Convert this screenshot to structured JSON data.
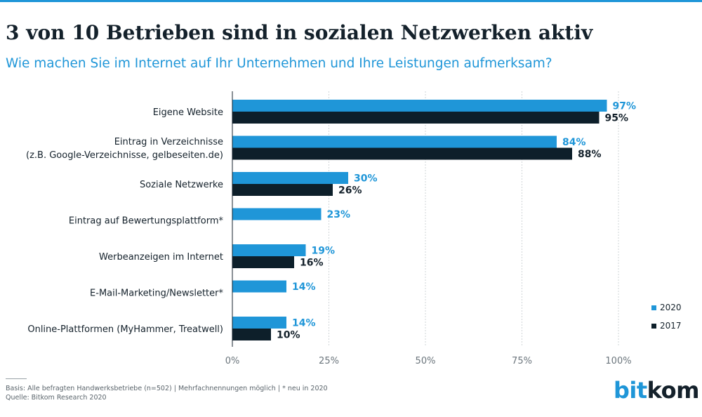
{
  "title": "3 von 10 Betrieben sind in sozialen Netzwerken aktiv",
  "subtitle": "Wie machen Sie im Internet auf Ihr Unternehmen und Ihre Leistungen aufmerksam?",
  "footnote": {
    "line1": "Basis: Alle befragten Handwerksbetriebe (n=502) | Mehrfachnennungen möglich | * neu in 2020",
    "line2": "Quelle: Bitkom Research 2020"
  },
  "logo": {
    "part1": "bit",
    "part2": "kom"
  },
  "colors": {
    "series2020": "#1f96d8",
    "series2017": "#0d1f2a",
    "grid": "#cfd4d7",
    "text": "#14212b"
  },
  "chart_data": {
    "type": "bar",
    "orientation": "horizontal",
    "title": "3 von 10 Betrieben sind in sozialen Netzwerken aktiv",
    "subtitle": "Wie machen Sie im Internet auf Ihr Unternehmen und Ihre Leistungen aufmerksam?",
    "categories": [
      [
        "Eigene Website"
      ],
      [
        "Eintrag in Verzeichnisse",
        "(z.B. Google-Verzeichnisse, gelbeseiten.de)"
      ],
      [
        "Soziale Netzwerke"
      ],
      [
        "Eintrag auf Bewertungsplattform*"
      ],
      [
        "Werbeanzeigen im Internet"
      ],
      [
        "E-Mail-Marketing/Newsletter*"
      ],
      [
        "Online-Plattformen (MyHammer, Treatwell)"
      ]
    ],
    "series": [
      {
        "name": "2020",
        "values": [
          97,
          84,
          30,
          23,
          19,
          14,
          14
        ]
      },
      {
        "name": "2017",
        "values": [
          95,
          88,
          26,
          null,
          16,
          null,
          10
        ]
      }
    ],
    "xlim": [
      0,
      100
    ],
    "xticks": [
      0,
      25,
      50,
      75,
      100
    ],
    "tick_labels": [
      "0%",
      "25%",
      "50%",
      "75%",
      "100%"
    ],
    "value_suffix": "%",
    "legend": "bottom-right",
    "grid": true
  }
}
